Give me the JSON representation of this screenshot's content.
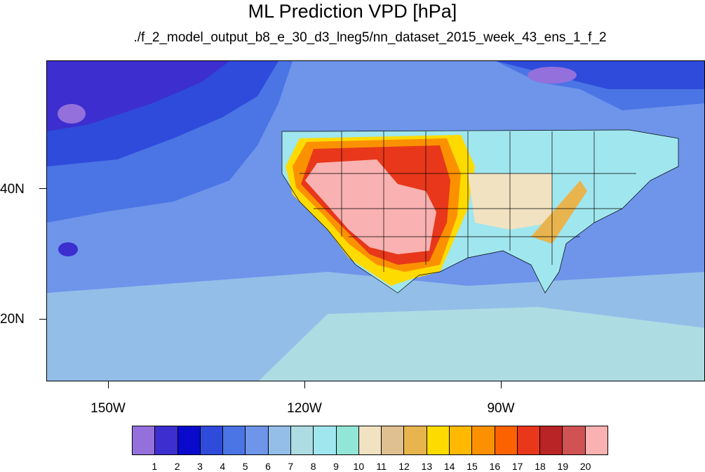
{
  "title": "ML Prediction VPD [hPa]",
  "subtitle": "./f_2_model_output_b8_e_30_d3_lneg5/nn_dataset_2015_week_43_ens_1_f_2",
  "x_axis": {
    "labels": [
      "150W",
      "120W",
      "90W"
    ]
  },
  "y_axis": {
    "labels": [
      "40N",
      "20N"
    ]
  },
  "colorbar": {
    "labels": [
      "1",
      "2",
      "3",
      "4",
      "5",
      "6",
      "7",
      "8",
      "9",
      "10",
      "11",
      "12",
      "13",
      "14",
      "15",
      "16",
      "17",
      "18",
      "19",
      "20"
    ],
    "colors": [
      "#9370DB",
      "#3C2ECF",
      "#0A0ACD",
      "#2E4BDB",
      "#4B74E5",
      "#6E95EA",
      "#93BEE8",
      "#AEDCE3",
      "#A0E6EE",
      "#92E6D7",
      "#F1E2C1",
      "#DFC090",
      "#E8B44E",
      "#FDDB00",
      "#FEB900",
      "#FC9100",
      "#FD6200",
      "#E8371A",
      "#B92424",
      "#D05252",
      "#F9B1B1"
    ]
  },
  "map": {
    "region": "North Pacific and contiguous United States",
    "ocean_color": "#6E95EA",
    "border_color": "#000000"
  }
}
